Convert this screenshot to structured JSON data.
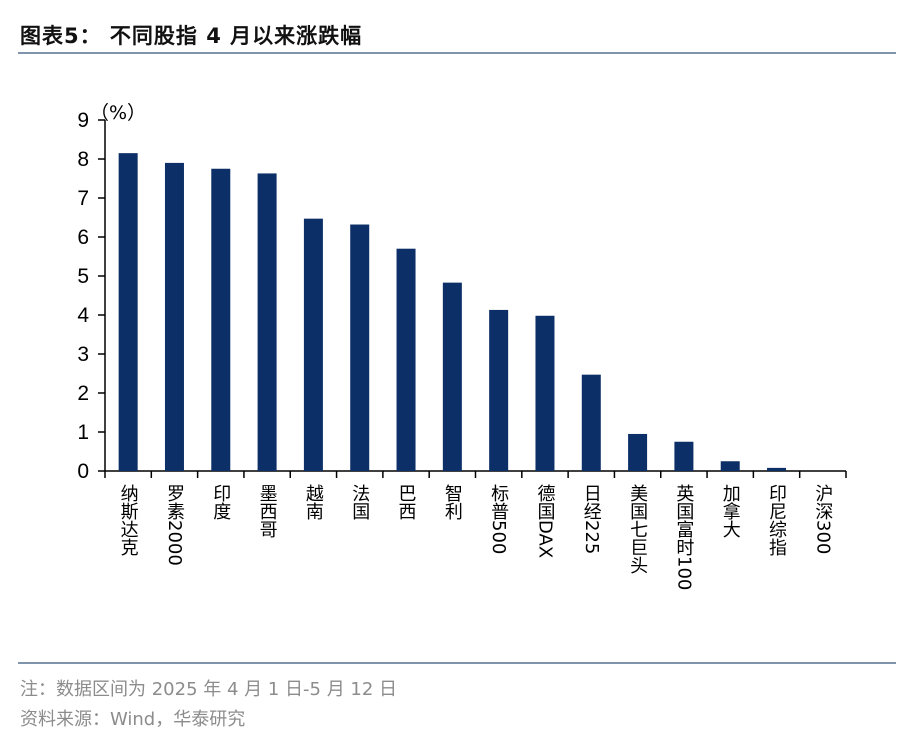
{
  "header": {
    "title": "图表5：  不同股指 4 月以来涨跌幅"
  },
  "footer": {
    "note": "注：数据区间为 2025 年 4 月 1 日-5 月 12 日",
    "source": "资料来源：Wind，华泰研究"
  },
  "chart_data": {
    "type": "bar",
    "title": "",
    "unit_label": "（%）",
    "xlabel": "",
    "ylabel": "",
    "ylim": [
      0,
      9
    ],
    "yticks": [
      0,
      1,
      2,
      3,
      4,
      5,
      6,
      7,
      8,
      9
    ],
    "grid": false,
    "legend": "none",
    "bar_color": "#0b2f66",
    "categories": [
      "纳斯达克",
      "罗素2000",
      "印度",
      "墨西哥",
      "越南",
      "法国",
      "巴西",
      "智利",
      "标普500",
      "德国DAX",
      "日经225",
      "美国七巨头",
      "英国富时100",
      "加拿大",
      "印尼综指",
      "沪深300"
    ],
    "values": [
      8.15,
      7.9,
      7.75,
      7.63,
      6.47,
      6.32,
      5.7,
      4.83,
      4.13,
      3.98,
      2.47,
      0.95,
      0.75,
      0.25,
      0.08,
      0.0
    ]
  }
}
